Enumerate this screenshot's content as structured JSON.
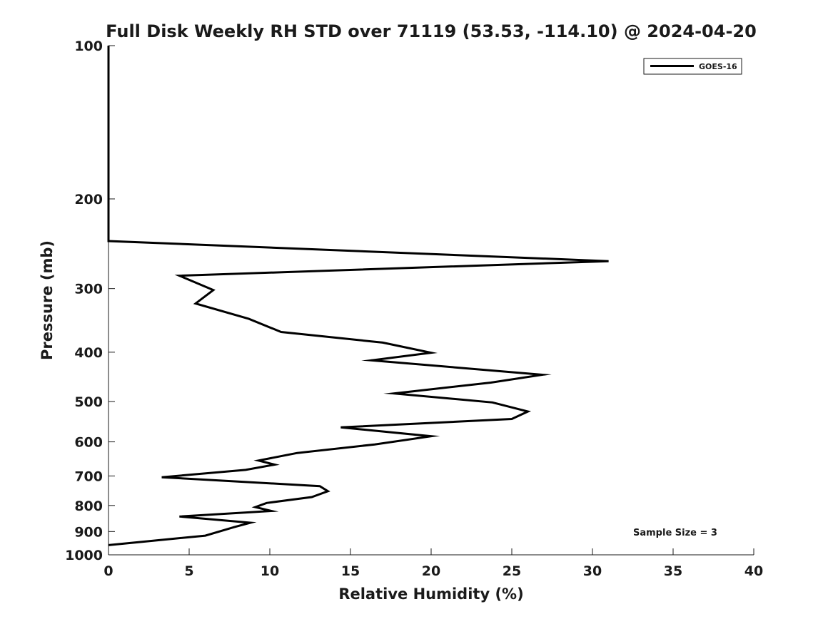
{
  "chart_data": {
    "type": "line",
    "title": "Full Disk Weekly RH STD over 71119 (53.53, -114.10) @ 2024-04-20",
    "xlabel": "Relative Humidity (%)",
    "ylabel": "Pressure (mb)",
    "xlim": [
      0,
      40
    ],
    "ylim": [
      1000,
      100
    ],
    "yscale": "log",
    "xticks": [
      0,
      5,
      10,
      15,
      20,
      25,
      30,
      35,
      40
    ],
    "yticks": [
      100,
      200,
      300,
      400,
      500,
      600,
      700,
      800,
      900,
      1000
    ],
    "legend": {
      "position": "top-right",
      "entries": [
        "GOES-16"
      ]
    },
    "annotation": "Sample Size = 3",
    "series": [
      {
        "name": "GOES-16",
        "color": "#000000",
        "x": [
          0,
          0,
          0,
          0,
          0,
          31,
          4.4,
          6.5,
          5.4,
          8.7,
          10.7,
          17,
          20,
          16.3,
          26.9,
          23.7,
          17.7,
          23.8,
          26,
          25,
          14.4,
          20,
          16.5,
          11.7,
          9.3,
          10.3,
          8.5,
          3.3,
          13.1,
          13.6,
          12.6,
          9.8,
          9.1,
          10.1,
          4.4,
          8.8,
          7.8,
          6,
          0
        ],
        "y": [
          100,
          150,
          200,
          230,
          242,
          265,
          283,
          302,
          321,
          344,
          365,
          383,
          401,
          415,
          443,
          459,
          482,
          502,
          523,
          541,
          562,
          585,
          607,
          631,
          653,
          665,
          681,
          704,
          733,
          750,
          770,
          791,
          806,
          820,
          841,
          865,
          882,
          917,
          957
        ]
      }
    ]
  }
}
